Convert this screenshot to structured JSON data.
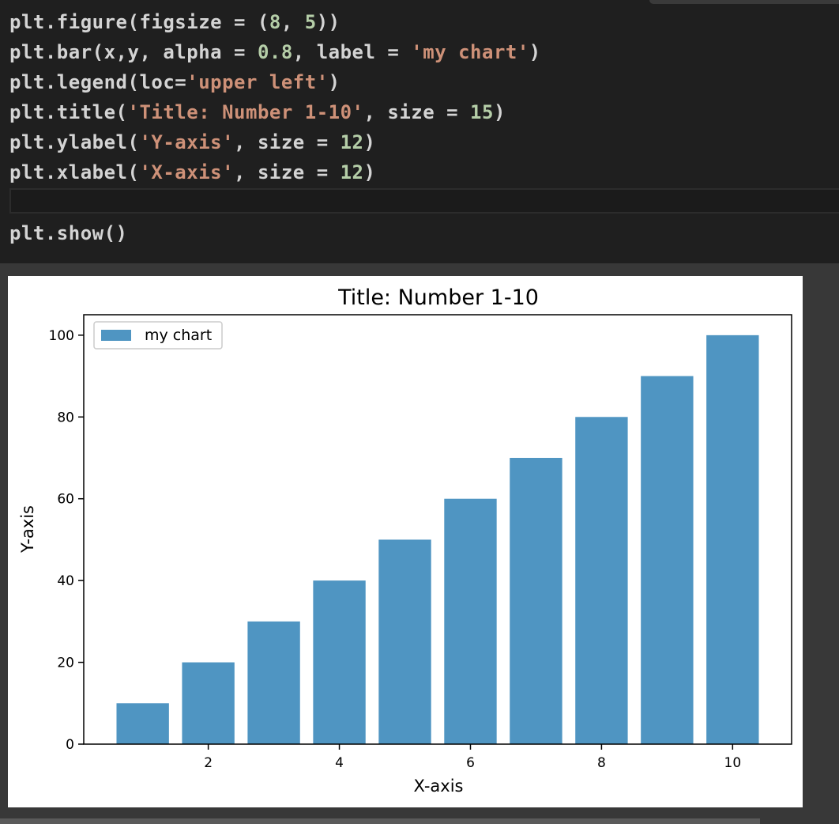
{
  "code_cell": {
    "lines": [
      [
        {
          "t": "txt",
          "v": "plt.figure(figsize = ("
        },
        {
          "t": "num",
          "v": "8"
        },
        {
          "t": "txt",
          "v": ", "
        },
        {
          "t": "num",
          "v": "5"
        },
        {
          "t": "txt",
          "v": "))"
        }
      ],
      [
        {
          "t": "txt",
          "v": "plt.bar(x,y, alpha = "
        },
        {
          "t": "num",
          "v": "0.8"
        },
        {
          "t": "txt",
          "v": ", label = "
        },
        {
          "t": "str",
          "v": "'my chart'"
        },
        {
          "t": "txt",
          "v": ")"
        }
      ],
      [
        {
          "t": "txt",
          "v": "plt.legend(loc="
        },
        {
          "t": "str",
          "v": "'upper left'"
        },
        {
          "t": "txt",
          "v": ")"
        }
      ],
      [
        {
          "t": "txt",
          "v": "plt.title("
        },
        {
          "t": "str",
          "v": "'Title: Number 1-10'"
        },
        {
          "t": "txt",
          "v": ", size = "
        },
        {
          "t": "num",
          "v": "15"
        },
        {
          "t": "txt",
          "v": ")"
        }
      ],
      [
        {
          "t": "txt",
          "v": "plt.ylabel("
        },
        {
          "t": "str",
          "v": "'Y-axis'"
        },
        {
          "t": "txt",
          "v": ", size = "
        },
        {
          "t": "num",
          "v": "12"
        },
        {
          "t": "txt",
          "v": ")"
        }
      ],
      [
        {
          "t": "txt",
          "v": "plt.xlabel("
        },
        {
          "t": "str",
          "v": "'X-axis'"
        },
        {
          "t": "txt",
          "v": ", size = "
        },
        {
          "t": "num",
          "v": "12"
        },
        {
          "t": "txt",
          "v": ")"
        }
      ],
      [],
      [
        {
          "t": "txt",
          "v": "plt.show()"
        }
      ]
    ]
  },
  "colors": {
    "bar": "#4f95c2",
    "code_string": "#ce9178",
    "code_number": "#b5cea8",
    "code_text": "#d4d4d4"
  },
  "chart_data": {
    "type": "bar",
    "title": "Title: Number 1-10",
    "xlabel": "X-axis",
    "ylabel": "Y-axis",
    "x": [
      1,
      2,
      3,
      4,
      5,
      6,
      7,
      8,
      9,
      10
    ],
    "series": [
      {
        "name": "my chart",
        "values": [
          10,
          20,
          30,
          40,
          50,
          60,
          70,
          80,
          90,
          100
        ]
      }
    ],
    "xlim": [
      0.1,
      10.9
    ],
    "ylim": [
      0,
      105
    ],
    "xticks": [
      "2",
      "4",
      "6",
      "8",
      "10"
    ],
    "yticks": [
      "0",
      "20",
      "40",
      "60",
      "80",
      "100"
    ],
    "legend_position": "upper left",
    "grid": false
  }
}
